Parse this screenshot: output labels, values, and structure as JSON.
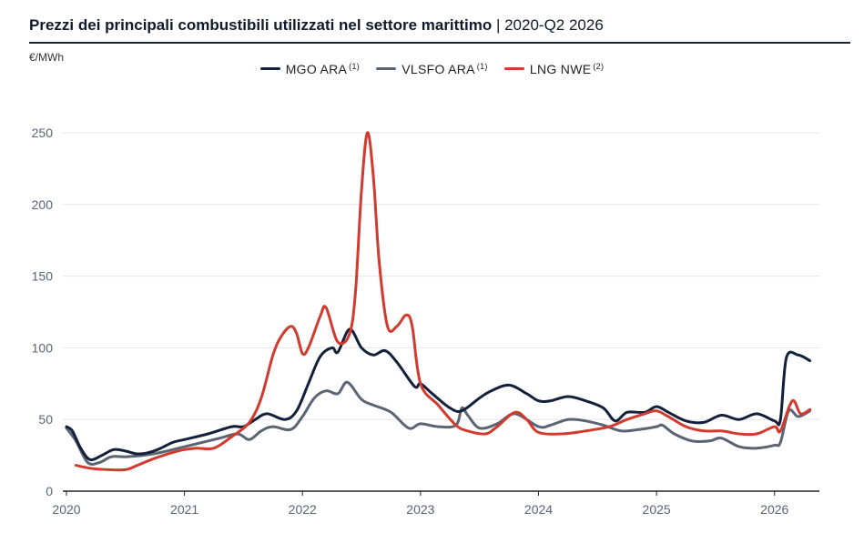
{
  "header": {
    "title_bold": "Prezzi dei principali combustibili utilizzati nel settore marittimo",
    "separator": "|",
    "title_range": "2020-Q2 2026"
  },
  "chart_data": {
    "type": "line",
    "ylabel": "€/MWh",
    "ylim": [
      0,
      250
    ],
    "yticks": [
      "0",
      "50",
      "100",
      "150",
      "200",
      "250"
    ],
    "xlim": [
      2020,
      2026.38
    ],
    "xticks": [
      "2020",
      "2021",
      "2022",
      "2023",
      "2024",
      "2025",
      "2026"
    ],
    "grid": "horizontal",
    "legend_position": "top-center",
    "series": [
      {
        "name": "MGO ARA",
        "note": "(1)",
        "color": "#13203a",
        "points": [
          [
            2020.0,
            45
          ],
          [
            2020.05,
            42
          ],
          [
            2020.12,
            30
          ],
          [
            2020.2,
            22
          ],
          [
            2020.3,
            25
          ],
          [
            2020.4,
            29
          ],
          [
            2020.5,
            28
          ],
          [
            2020.6,
            26
          ],
          [
            2020.7,
            27
          ],
          [
            2020.8,
            30
          ],
          [
            2020.9,
            34
          ],
          [
            2021.0,
            36
          ],
          [
            2021.2,
            40
          ],
          [
            2021.4,
            45
          ],
          [
            2021.5,
            45
          ],
          [
            2021.6,
            50
          ],
          [
            2021.7,
            54
          ],
          [
            2021.85,
            50
          ],
          [
            2021.95,
            56
          ],
          [
            2022.05,
            75
          ],
          [
            2022.15,
            94
          ],
          [
            2022.25,
            100
          ],
          [
            2022.3,
            97
          ],
          [
            2022.4,
            113
          ],
          [
            2022.5,
            100
          ],
          [
            2022.6,
            95
          ],
          [
            2022.7,
            98
          ],
          [
            2022.8,
            90
          ],
          [
            2022.95,
            73
          ],
          [
            2023.0,
            75
          ],
          [
            2023.1,
            68
          ],
          [
            2023.25,
            58
          ],
          [
            2023.35,
            56
          ],
          [
            2023.5,
            65
          ],
          [
            2023.6,
            70
          ],
          [
            2023.75,
            74
          ],
          [
            2023.9,
            68
          ],
          [
            2024.0,
            63
          ],
          [
            2024.1,
            63
          ],
          [
            2024.25,
            66
          ],
          [
            2024.4,
            63
          ],
          [
            2024.55,
            58
          ],
          [
            2024.65,
            49
          ],
          [
            2024.75,
            55
          ],
          [
            2024.9,
            55
          ],
          [
            2025.0,
            59
          ],
          [
            2025.1,
            55
          ],
          [
            2025.25,
            49
          ],
          [
            2025.4,
            48
          ],
          [
            2025.55,
            53
          ],
          [
            2025.7,
            50
          ],
          [
            2025.85,
            54
          ],
          [
            2026.0,
            49
          ],
          [
            2026.05,
            50
          ],
          [
            2026.1,
            93
          ],
          [
            2026.2,
            95
          ],
          [
            2026.3,
            91
          ]
        ]
      },
      {
        "name": "VLSFO ARA",
        "note": "(1)",
        "color": "#5a6472",
        "points": [
          [
            2020.0,
            44
          ],
          [
            2020.08,
            35
          ],
          [
            2020.18,
            20
          ],
          [
            2020.28,
            20
          ],
          [
            2020.38,
            24
          ],
          [
            2020.5,
            24
          ],
          [
            2020.65,
            25
          ],
          [
            2020.8,
            27
          ],
          [
            2020.95,
            30
          ],
          [
            2021.1,
            33
          ],
          [
            2021.3,
            37
          ],
          [
            2021.45,
            40
          ],
          [
            2021.55,
            36
          ],
          [
            2021.65,
            42
          ],
          [
            2021.75,
            45
          ],
          [
            2021.9,
            43
          ],
          [
            2022.0,
            52
          ],
          [
            2022.1,
            65
          ],
          [
            2022.2,
            70
          ],
          [
            2022.3,
            68
          ],
          [
            2022.38,
            76
          ],
          [
            2022.5,
            64
          ],
          [
            2022.6,
            60
          ],
          [
            2022.75,
            55
          ],
          [
            2022.9,
            44
          ],
          [
            2023.0,
            47
          ],
          [
            2023.15,
            45
          ],
          [
            2023.3,
            46
          ],
          [
            2023.35,
            58
          ],
          [
            2023.4,
            53
          ],
          [
            2023.5,
            44
          ],
          [
            2023.65,
            47
          ],
          [
            2023.8,
            54
          ],
          [
            2024.0,
            45
          ],
          [
            2024.1,
            46
          ],
          [
            2024.25,
            50
          ],
          [
            2024.4,
            49
          ],
          [
            2024.55,
            46
          ],
          [
            2024.7,
            42
          ],
          [
            2024.85,
            43
          ],
          [
            2025.0,
            45
          ],
          [
            2025.05,
            46
          ],
          [
            2025.15,
            40
          ],
          [
            2025.3,
            35
          ],
          [
            2025.45,
            35
          ],
          [
            2025.55,
            37
          ],
          [
            2025.7,
            31
          ],
          [
            2025.85,
            30
          ],
          [
            2026.0,
            32
          ],
          [
            2026.05,
            34
          ],
          [
            2026.12,
            56
          ],
          [
            2026.2,
            52
          ],
          [
            2026.3,
            56
          ]
        ]
      },
      {
        "name": "LNG NWE",
        "note": "(2)",
        "color": "#d23a2e",
        "points": [
          [
            2020.08,
            18
          ],
          [
            2020.2,
            16
          ],
          [
            2020.35,
            15
          ],
          [
            2020.5,
            15
          ],
          [
            2020.6,
            18
          ],
          [
            2020.75,
            23
          ],
          [
            2020.9,
            27
          ],
          [
            2021.0,
            29
          ],
          [
            2021.1,
            30
          ],
          [
            2021.25,
            30
          ],
          [
            2021.4,
            38
          ],
          [
            2021.55,
            48
          ],
          [
            2021.65,
            65
          ],
          [
            2021.75,
            95
          ],
          [
            2021.82,
            108
          ],
          [
            2021.9,
            115
          ],
          [
            2021.95,
            110
          ],
          [
            2022.0,
            96
          ],
          [
            2022.05,
            100
          ],
          [
            2022.15,
            122
          ],
          [
            2022.2,
            128
          ],
          [
            2022.3,
            104
          ],
          [
            2022.4,
            110
          ],
          [
            2022.45,
            140
          ],
          [
            2022.5,
            210
          ],
          [
            2022.55,
            250
          ],
          [
            2022.6,
            220
          ],
          [
            2022.65,
            160
          ],
          [
            2022.72,
            115
          ],
          [
            2022.8,
            115
          ],
          [
            2022.88,
            123
          ],
          [
            2022.93,
            115
          ],
          [
            2023.0,
            75
          ],
          [
            2023.15,
            60
          ],
          [
            2023.3,
            46
          ],
          [
            2023.4,
            42
          ],
          [
            2023.55,
            40
          ],
          [
            2023.65,
            45
          ],
          [
            2023.8,
            55
          ],
          [
            2023.9,
            50
          ],
          [
            2024.0,
            41
          ],
          [
            2024.2,
            40
          ],
          [
            2024.4,
            42
          ],
          [
            2024.6,
            45
          ],
          [
            2024.75,
            50
          ],
          [
            2024.9,
            54
          ],
          [
            2025.0,
            56
          ],
          [
            2025.1,
            52
          ],
          [
            2025.25,
            45
          ],
          [
            2025.4,
            42
          ],
          [
            2025.55,
            42
          ],
          [
            2025.7,
            40
          ],
          [
            2025.85,
            40
          ],
          [
            2026.0,
            45
          ],
          [
            2026.05,
            42
          ],
          [
            2026.15,
            63
          ],
          [
            2026.22,
            54
          ],
          [
            2026.3,
            57
          ]
        ]
      }
    ]
  }
}
